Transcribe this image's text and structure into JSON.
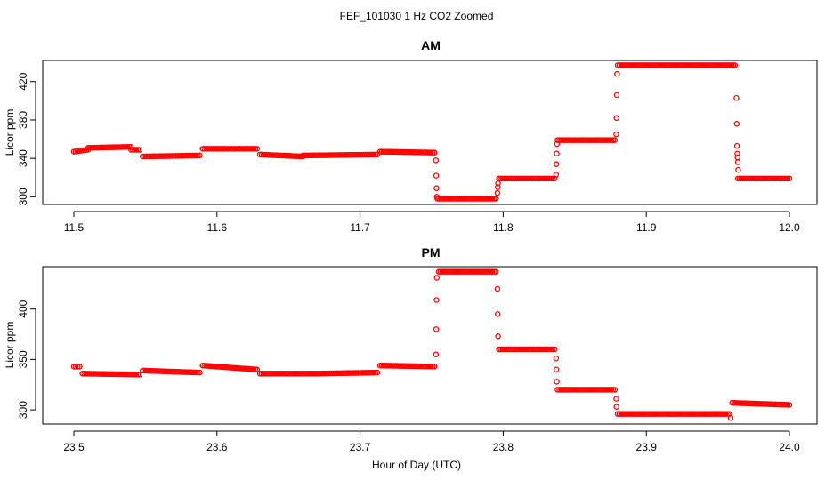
{
  "chart_data": {
    "type": "scatter",
    "title": "FEF_101030  1 Hz CO2 Zoomed",
    "xlabel": "Hour of Day (UTC)",
    "marker_color": "#ff0000",
    "panels": [
      {
        "title": "AM",
        "ylabel": "Licor ppm",
        "xlim": [
          11.5,
          12.0
        ],
        "ylim": [
          292,
          442
        ],
        "xticks": [
          "11.5",
          "11.6",
          "11.7",
          "11.8",
          "11.9",
          "12.0"
        ],
        "yticks": [
          "300",
          "340",
          "380",
          "420"
        ],
        "flats": [
          {
            "x": [
              11.5,
              11.51
            ],
            "y": [
              347,
              349
            ]
          },
          {
            "x": [
              11.51,
              11.54
            ],
            "y": [
              351,
              352
            ]
          },
          {
            "x": [
              11.54,
              11.546
            ],
            "y": [
              349,
              349
            ]
          },
          {
            "x": [
              11.548,
              11.588
            ],
            "y": [
              342,
              343
            ]
          },
          {
            "x": [
              11.59,
              11.628
            ],
            "y": [
              350,
              350
            ]
          },
          {
            "x": [
              11.63,
              11.66
            ],
            "y": [
              344,
              342
            ]
          },
          {
            "x": [
              11.66,
              11.712
            ],
            "y": [
              343,
              344
            ]
          },
          {
            "x": [
              11.714,
              11.752
            ],
            "y": [
              347,
              346
            ]
          },
          {
            "x": [
              11.754,
              11.795
            ],
            "y": [
              298,
              298
            ]
          },
          {
            "x": [
              11.797,
              11.836
            ],
            "y": [
              319,
              319
            ]
          },
          {
            "x": [
              11.838,
              11.878
            ],
            "y": [
              359,
              359
            ]
          },
          {
            "x": [
              11.88,
              11.962
            ],
            "y": [
              437,
              437
            ]
          },
          {
            "x": [
              11.964,
              12.0
            ],
            "y": [
              319,
              319
            ]
          }
        ],
        "transitions": [
          {
            "x": 11.753,
            "y": 338
          },
          {
            "x": 11.7532,
            "y": 322
          },
          {
            "x": 11.7534,
            "y": 309
          },
          {
            "x": 11.7536,
            "y": 300
          },
          {
            "x": 11.796,
            "y": 304
          },
          {
            "x": 11.7962,
            "y": 310
          },
          {
            "x": 11.7964,
            "y": 314
          },
          {
            "x": 11.837,
            "y": 323
          },
          {
            "x": 11.8372,
            "y": 334
          },
          {
            "x": 11.8374,
            "y": 345
          },
          {
            "x": 11.8376,
            "y": 355
          },
          {
            "x": 11.879,
            "y": 365
          },
          {
            "x": 11.8792,
            "y": 382
          },
          {
            "x": 11.8794,
            "y": 406
          },
          {
            "x": 11.8796,
            "y": 428
          },
          {
            "x": 11.963,
            "y": 403
          },
          {
            "x": 11.9632,
            "y": 376
          },
          {
            "x": 11.9634,
            "y": 353
          },
          {
            "x": 11.9636,
            "y": 345
          },
          {
            "x": 11.9638,
            "y": 341
          },
          {
            "x": 11.964,
            "y": 336
          },
          {
            "x": 11.9642,
            "y": 328
          }
        ]
      },
      {
        "title": "PM",
        "ylabel": "Licor ppm",
        "xlim": [
          23.5,
          24.0
        ],
        "ylim": [
          286,
          442
        ],
        "xticks": [
          "23.5",
          "23.6",
          "23.7",
          "23.8",
          "23.9",
          "24.0"
        ],
        "yticks": [
          "300",
          "350",
          "400"
        ],
        "flats": [
          {
            "x": [
              23.5,
              23.504
            ],
            "y": [
              343,
              343
            ]
          },
          {
            "x": [
              23.506,
              23.546
            ],
            "y": [
              336,
              335
            ]
          },
          {
            "x": [
              23.548,
              23.588
            ],
            "y": [
              339,
              337
            ]
          },
          {
            "x": [
              23.59,
              23.628
            ],
            "y": [
              344,
              340
            ]
          },
          {
            "x": [
              23.63,
              23.67
            ],
            "y": [
              336,
              336
            ]
          },
          {
            "x": [
              23.67,
              23.712
            ],
            "y": [
              336,
              337
            ]
          },
          {
            "x": [
              23.714,
              23.752
            ],
            "y": [
              344,
              343
            ]
          },
          {
            "x": [
              23.755,
              23.795
            ],
            "y": [
              437,
              437
            ]
          },
          {
            "x": [
              23.797,
              23.836
            ],
            "y": [
              360,
              360
            ]
          },
          {
            "x": [
              23.838,
              23.878
            ],
            "y": [
              320,
              320
            ]
          },
          {
            "x": [
              23.88,
              23.958
            ],
            "y": [
              296,
              296
            ]
          },
          {
            "x": [
              23.96,
              24.0
            ],
            "y": [
              307,
              305
            ]
          }
        ],
        "transitions": [
          {
            "x": 23.753,
            "y": 355
          },
          {
            "x": 23.7532,
            "y": 380
          },
          {
            "x": 23.7534,
            "y": 409
          },
          {
            "x": 23.7536,
            "y": 431
          },
          {
            "x": 23.796,
            "y": 420
          },
          {
            "x": 23.7962,
            "y": 395
          },
          {
            "x": 23.7964,
            "y": 373
          },
          {
            "x": 23.837,
            "y": 351
          },
          {
            "x": 23.8372,
            "y": 340
          },
          {
            "x": 23.8374,
            "y": 328
          },
          {
            "x": 23.879,
            "y": 311
          },
          {
            "x": 23.8792,
            "y": 303
          },
          {
            "x": 23.959,
            "y": 292
          }
        ]
      }
    ]
  }
}
